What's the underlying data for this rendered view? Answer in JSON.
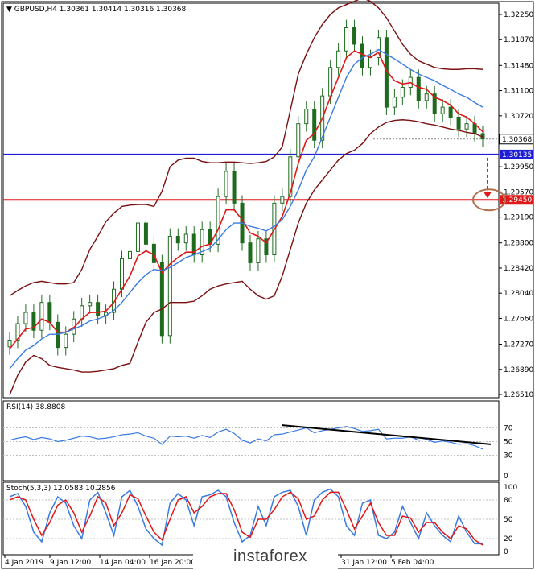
{
  "chart_data": [
    {
      "type": "candlestick",
      "header": "▼ GBPUSD,H4  1.30361 1.30414 1.30316 1.30368",
      "symbol": "GBPUSD",
      "timeframe": "H4",
      "ohlc": [
        1.30361,
        1.30414,
        1.30316,
        1.30368
      ],
      "ylim": [
        1.2651,
        1.3225
      ],
      "y_ticks": [
        "1.32250",
        "1.31870",
        "1.31480",
        "1.31100",
        "1.30720",
        "1.30368",
        "1.29950",
        "1.29570",
        "1.29190",
        "1.28800",
        "1.28420",
        "1.28040",
        "1.27660",
        "1.27270",
        "1.26890",
        "1.26510"
      ],
      "y_tick_values": [
        1.3225,
        1.3187,
        1.3148,
        1.311,
        1.3072,
        1.30368,
        1.2995,
        1.2957,
        1.2919,
        1.288,
        1.2842,
        1.2804,
        1.2766,
        1.2727,
        1.2689,
        1.2651
      ],
      "x_ticks": [
        "4 Jan 2019",
        "9 Jan 12:00",
        "14 Jan 04:00",
        "16 Jan 20:00",
        "",
        "",
        "31 Jan 12:00",
        "5 Feb 04:00"
      ],
      "current_price": {
        "label": "1.30368",
        "value": 1.30368
      },
      "hlines": [
        {
          "label": "1.30135",
          "value": 1.30135,
          "color": "#1f1fd6"
        },
        {
          "label": "1.29450",
          "value": 1.2945,
          "color": "#e01818"
        }
      ],
      "series": [
        {
          "name": "close",
          "color": "#1e6b1e",
          "values": [
            1.2733,
            1.2758,
            1.2775,
            1.2748,
            1.279,
            1.276,
            1.2722,
            1.2742,
            1.2765,
            1.2785,
            1.279,
            1.277,
            1.2775,
            1.281,
            1.2856,
            1.2867,
            1.291,
            1.2878,
            1.285,
            1.274,
            1.289,
            1.288,
            1.2893,
            1.2862,
            1.29,
            1.2878,
            1.295,
            1.2988,
            1.294,
            1.288,
            1.285,
            1.2886,
            1.2862,
            1.294,
            1.295,
            1.301,
            1.306,
            1.3082,
            1.3035,
            1.3102,
            1.3145,
            1.317,
            1.3205,
            1.318,
            1.3145,
            1.316,
            1.319,
            1.3085,
            1.31,
            1.3115,
            1.313,
            1.3095,
            1.3105,
            1.3075,
            1.3085,
            1.307,
            1.3052,
            1.306,
            1.3045,
            1.3037
          ]
        },
        {
          "name": "ma_fast",
          "color": "#e01818",
          "values": [
            1.272,
            1.2735,
            1.275,
            1.2752,
            1.2765,
            1.276,
            1.2745,
            1.2745,
            1.2752,
            1.2765,
            1.2775,
            1.2775,
            1.2777,
            1.279,
            1.281,
            1.283,
            1.286,
            1.2868,
            1.2862,
            1.2835,
            1.2848,
            1.2858,
            1.2866,
            1.2866,
            1.2875,
            1.2878,
            1.29,
            1.293,
            1.293,
            1.2915,
            1.2895,
            1.289,
            1.288,
            1.29,
            1.292,
            1.2955,
            1.3,
            1.3035,
            1.3045,
            1.3068,
            1.31,
            1.313,
            1.316,
            1.317,
            1.3165,
            1.316,
            1.3168,
            1.314,
            1.3125,
            1.312,
            1.3122,
            1.3115,
            1.3112,
            1.31,
            1.3095,
            1.3088,
            1.3075,
            1.307,
            1.306,
            1.3048
          ]
        },
        {
          "name": "ma_mid",
          "color": "#3a7be0",
          "values": [
            1.269,
            1.2705,
            1.2718,
            1.2725,
            1.2735,
            1.2742,
            1.2742,
            1.2745,
            1.275,
            1.2755,
            1.2762,
            1.2765,
            1.277,
            1.2778,
            1.279,
            1.2805,
            1.282,
            1.2832,
            1.284,
            1.2838,
            1.2843,
            1.285,
            1.2858,
            1.2862,
            1.2867,
            1.2872,
            1.2885,
            1.29,
            1.291,
            1.291,
            1.2905,
            1.2902,
            1.2898,
            1.2905,
            1.2915,
            1.2935,
            1.296,
            1.299,
            1.301,
            1.304,
            1.307,
            1.31,
            1.313,
            1.315,
            1.316,
            1.3165,
            1.3172,
            1.3165,
            1.3158,
            1.315,
            1.3142,
            1.3135,
            1.313,
            1.3125,
            1.3118,
            1.3112,
            1.3105,
            1.31,
            1.3092,
            1.3085
          ]
        },
        {
          "name": "bb_upper",
          "color": "#7a1010",
          "values": [
            1.28,
            1.2808,
            1.2815,
            1.282,
            1.2822,
            1.282,
            1.2818,
            1.2818,
            1.282,
            1.284,
            1.287,
            1.289,
            1.2912,
            1.2925,
            1.2935,
            1.2937,
            1.2938,
            1.2938,
            1.2935,
            1.2958,
            1.2995,
            1.3005,
            1.3008,
            1.3008,
            1.3003,
            1.3001,
            1.3001,
            1.3002,
            1.3002,
            1.3001,
            1.3,
            1.3001,
            1.3003,
            1.301,
            1.3025,
            1.308,
            1.3135,
            1.3165,
            1.319,
            1.321,
            1.3225,
            1.3235,
            1.324,
            1.3245,
            1.325,
            1.3245,
            1.3235,
            1.322,
            1.32,
            1.318,
            1.3165,
            1.3155,
            1.315,
            1.3145,
            1.3143,
            1.3142,
            1.3142,
            1.3143,
            1.3143,
            1.3142
          ]
        },
        {
          "name": "bb_lower",
          "color": "#7a1010",
          "values": [
            1.265,
            1.268,
            1.27,
            1.271,
            1.2705,
            1.2695,
            1.2692,
            1.269,
            1.2688,
            1.2685,
            1.2685,
            1.2686,
            1.2688,
            1.269,
            1.2695,
            1.2698,
            1.273,
            1.276,
            1.2775,
            1.278,
            1.279,
            1.279,
            1.279,
            1.2792,
            1.28,
            1.281,
            1.2815,
            1.2818,
            1.282,
            1.2822,
            1.281,
            1.28,
            1.2795,
            1.28,
            1.283,
            1.287,
            1.291,
            1.294,
            1.296,
            1.2975,
            1.299,
            1.3005,
            1.3015,
            1.302,
            1.303,
            1.3045,
            1.3055,
            1.3062,
            1.3065,
            1.3066,
            1.3065,
            1.3063,
            1.306,
            1.3058,
            1.3055,
            1.3052,
            1.305,
            1.3047,
            1.3045,
            1.304
          ]
        }
      ]
    },
    {
      "type": "line",
      "label": "RSI(14) 38.8808",
      "ylim": [
        0,
        100
      ],
      "y_ticks": [
        "70",
        "50",
        "30",
        "0"
      ],
      "y_tick_values": [
        70,
        50,
        30,
        0
      ],
      "levels": [
        70,
        50,
        30
      ],
      "series": [
        {
          "name": "RSI",
          "color": "#3a7be0",
          "values": [
            52,
            55,
            57,
            53,
            56,
            54,
            50,
            52,
            55,
            58,
            57,
            54,
            55,
            57,
            60,
            61,
            63,
            58,
            55,
            46,
            58,
            57,
            58,
            55,
            59,
            56,
            64,
            68,
            62,
            52,
            48,
            54,
            51,
            60,
            61,
            64,
            67,
            70,
            63,
            66,
            68,
            70,
            72,
            69,
            65,
            66,
            68,
            54,
            55,
            55,
            57,
            52,
            53,
            49,
            51,
            49,
            46,
            47,
            44,
            39
          ]
        }
      ],
      "trendline_values": [
        74,
        46
      ],
      "trendline_color": "#000000"
    },
    {
      "type": "line",
      "label": "Stoch(5,3,3) 12.0583 10.2856",
      "ylim": [
        0,
        100
      ],
      "y_ticks": [
        "100",
        "80",
        "50",
        "20",
        "0"
      ],
      "y_tick_values": [
        100,
        80,
        50,
        20,
        0
      ],
      "levels": [
        80,
        50,
        20
      ],
      "series": [
        {
          "name": "%K",
          "color": "#3a7be0",
          "values": [
            85,
            90,
            70,
            30,
            15,
            60,
            85,
            75,
            40,
            20,
            80,
            92,
            60,
            25,
            85,
            95,
            70,
            35,
            20,
            10,
            75,
            90,
            80,
            40,
            85,
            88,
            95,
            85,
            45,
            15,
            25,
            70,
            40,
            85,
            92,
            95,
            70,
            25,
            80,
            92,
            97,
            85,
            40,
            25,
            75,
            80,
            25,
            20,
            30,
            70,
            45,
            20,
            60,
            40,
            25,
            15,
            55,
            30,
            12,
            12
          ]
        },
        {
          "name": "%D",
          "color": "#e01818",
          "values": [
            80,
            85,
            80,
            50,
            25,
            45,
            72,
            80,
            60,
            30,
            55,
            85,
            75,
            40,
            60,
            88,
            82,
            55,
            30,
            18,
            50,
            80,
            85,
            60,
            70,
            85,
            90,
            90,
            65,
            30,
            22,
            50,
            50,
            65,
            85,
            92,
            82,
            50,
            55,
            80,
            92,
            92,
            65,
            35,
            55,
            75,
            45,
            25,
            25,
            55,
            52,
            30,
            45,
            45,
            30,
            20,
            40,
            35,
            18,
            10
          ]
        }
      ]
    }
  ],
  "watermark": "instaforex",
  "annotation_colors": {
    "arrow": "#e01818",
    "target_ellipse": "#b07050"
  }
}
